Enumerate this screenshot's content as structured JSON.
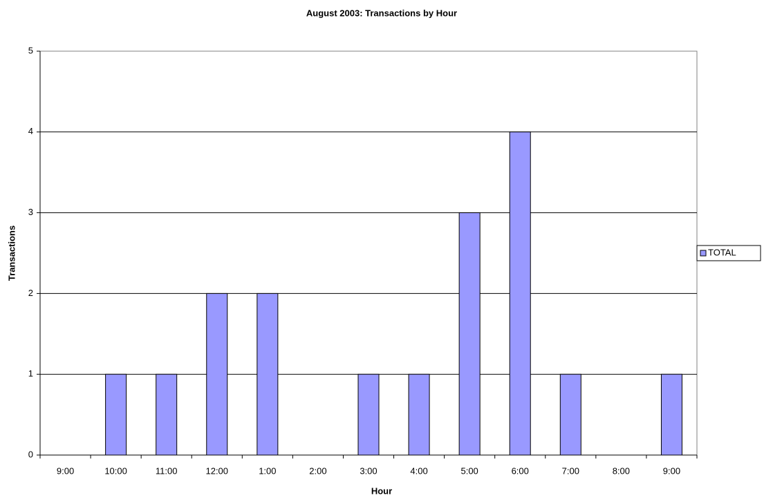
{
  "chart_data": {
    "type": "bar",
    "title": "August 2003: Transactions by Hour",
    "x_label": "Hour",
    "y_label": "Transactions",
    "categories": [
      "9:00",
      "10:00",
      "11:00",
      "12:00",
      "1:00",
      "2:00",
      "3:00",
      "4:00",
      "5:00",
      "6:00",
      "7:00",
      "8:00",
      "9:00"
    ],
    "series": [
      {
        "name": "TOTAL",
        "color": "#9999ff",
        "values": [
          0,
          1,
          1,
          2,
          2,
          0,
          1,
          1,
          3,
          4,
          1,
          0,
          1
        ]
      }
    ],
    "ylim": [
      0,
      5
    ],
    "yticks": [
      0,
      1,
      2,
      3,
      4,
      5
    ],
    "grid": true,
    "legend": "right"
  }
}
